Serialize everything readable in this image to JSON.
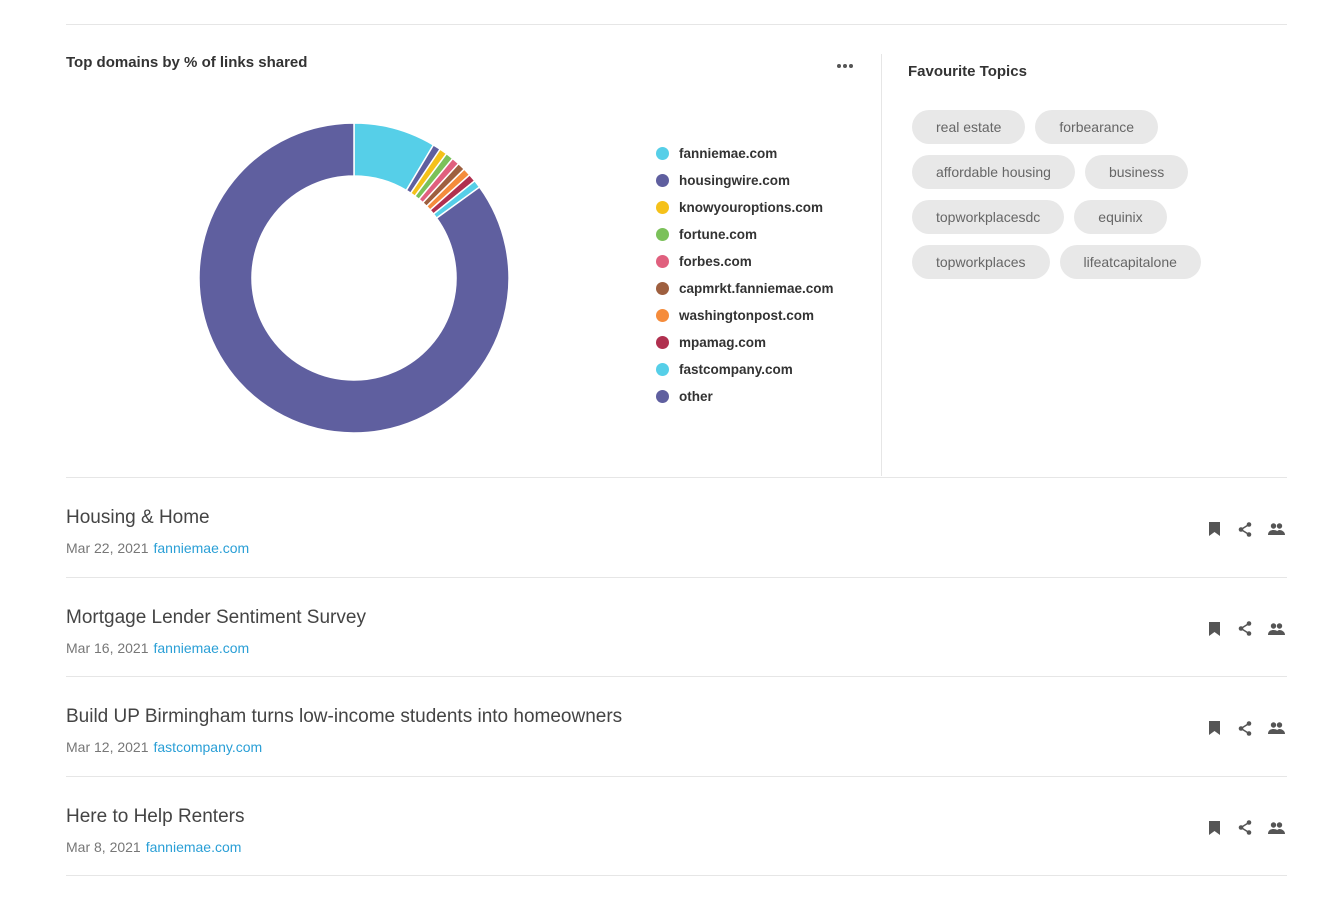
{
  "chart_panel": {
    "title": "Top domains by % of links shared",
    "more_icon": "more-horizontal-icon"
  },
  "chart_data": {
    "type": "pie",
    "title": "Top domains by % of links shared",
    "donut": true,
    "legend_position": "right",
    "series": [
      {
        "name": "fanniemae.com",
        "value": 8.5,
        "color": "#56cfe8"
      },
      {
        "name": "housingwire.com",
        "value": 0.8,
        "color": "#5f5f9f"
      },
      {
        "name": "knowyouroptions.com",
        "value": 0.8,
        "color": "#f5c11a"
      },
      {
        "name": "fortune.com",
        "value": 0.8,
        "color": "#7bc15a"
      },
      {
        "name": "forbes.com",
        "value": 0.8,
        "color": "#e0607e"
      },
      {
        "name": "capmrkt.fanniemae.com",
        "value": 0.8,
        "color": "#9e5f3f"
      },
      {
        "name": "washingtonpost.com",
        "value": 0.8,
        "color": "#f58c3c"
      },
      {
        "name": "mpamag.com",
        "value": 0.8,
        "color": "#b0304f"
      },
      {
        "name": "fastcompany.com",
        "value": 0.8,
        "color": "#56cfe8"
      },
      {
        "name": "other",
        "value": 84.3,
        "color": "#5f5f9f"
      }
    ]
  },
  "topics": {
    "title": "Favourite Topics",
    "items": [
      "real estate",
      "forbearance",
      "affordable housing",
      "business",
      "topworkplacesdc",
      "equinix",
      "topworkplaces",
      "lifeatcapitalone"
    ]
  },
  "articles": [
    {
      "title": "Housing & Home",
      "date": "Mar 22, 2021",
      "domain": "fanniemae.com"
    },
    {
      "title": "Mortgage Lender Sentiment Survey",
      "date": "Mar 16, 2021",
      "domain": "fanniemae.com"
    },
    {
      "title": "Build UP Birmingham turns low-income students into homeowners",
      "date": "Mar 12, 2021",
      "domain": "fastcompany.com"
    },
    {
      "title": "Here to Help Renters",
      "date": "Mar 8, 2021",
      "domain": "fanniemae.com"
    }
  ],
  "article_action_icons": [
    "bookmark-icon",
    "share-icon",
    "group-icon"
  ],
  "colors": {
    "link": "#2a9fd6",
    "chip_bg": "#e8e8e8",
    "divider": "#e6e6e6"
  }
}
